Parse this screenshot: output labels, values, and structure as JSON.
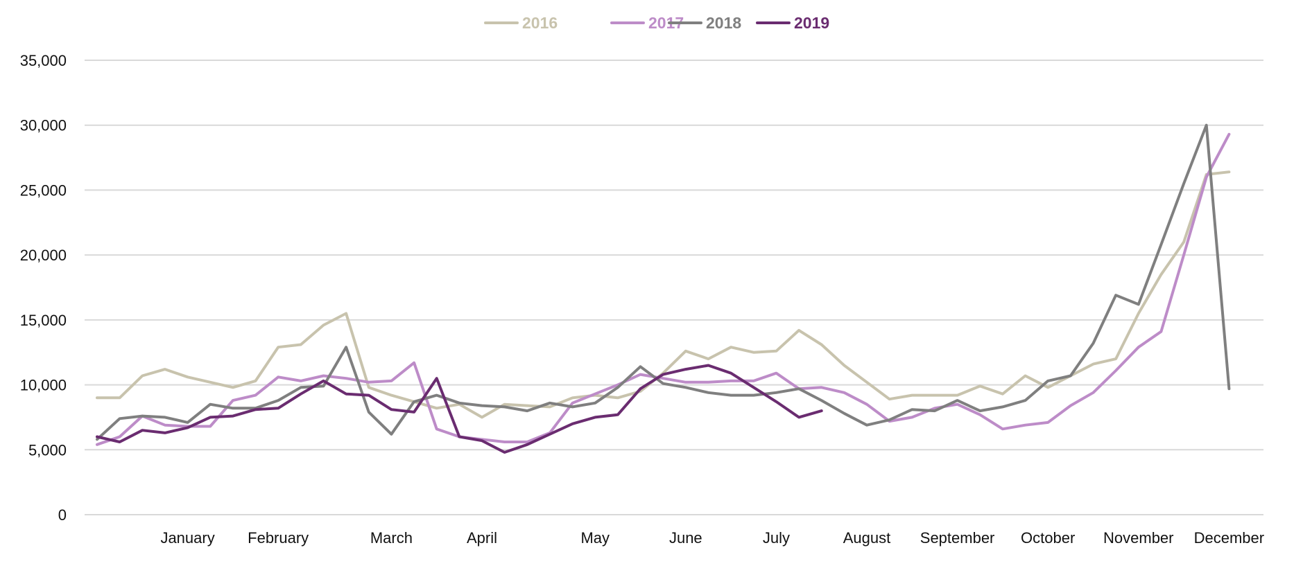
{
  "chart_data": {
    "type": "line",
    "title": "",
    "xlabel": "",
    "ylabel": "",
    "ylim": [
      0,
      35000
    ],
    "yticks": [
      0,
      5000,
      10000,
      15000,
      20000,
      25000,
      30000,
      35000
    ],
    "ytick_labels": [
      "0",
      "5,000",
      "10,000",
      "15,000",
      "20,000",
      "25,000",
      "30,000",
      "35,000"
    ],
    "grid": true,
    "legend_position": "top-center",
    "x_week_range": [
      1,
      53
    ],
    "month_labels": [
      {
        "label": "January",
        "week": 5
      },
      {
        "label": "February",
        "week": 9
      },
      {
        "label": "March",
        "week": 14
      },
      {
        "label": "April",
        "week": 18
      },
      {
        "label": "May",
        "week": 23
      },
      {
        "label": "June",
        "week": 27
      },
      {
        "label": "July",
        "week": 31
      },
      {
        "label": "August",
        "week": 35
      },
      {
        "label": "September",
        "week": 39
      },
      {
        "label": "October",
        "week": 43
      },
      {
        "label": "November",
        "week": 47
      },
      {
        "label": "December",
        "week": 51
      }
    ],
    "series": [
      {
        "name": "2016",
        "color": "#c8c3ad",
        "values": [
          9000,
          9000,
          10700,
          11200,
          10600,
          10200,
          9800,
          10300,
          12900,
          13100,
          14600,
          15500,
          9800,
          9200,
          8700,
          8200,
          8500,
          7500,
          8500,
          8400,
          8300,
          9000,
          9200,
          9000,
          9500,
          10900,
          12600,
          12000,
          12900,
          12500,
          12600,
          14200,
          13100,
          11500,
          10200,
          8900,
          9200,
          9200,
          9200,
          9900,
          9300,
          10700,
          9800,
          10700,
          11600,
          12000,
          15500,
          18500,
          21000,
          26200,
          26400
        ]
      },
      {
        "name": "2017",
        "color": "#bd8cc8",
        "values": [
          5400,
          6000,
          7600,
          6900,
          6800,
          6800,
          8800,
          9200,
          10600,
          10300,
          10700,
          10500,
          10200,
          10300,
          11700,
          6600,
          6000,
          5800,
          5600,
          5600,
          6300,
          8600,
          9300,
          10000,
          10800,
          10500,
          10200,
          10200,
          10300,
          10300,
          10900,
          9700,
          9800,
          9400,
          8500,
          7200,
          7500,
          8200,
          8500,
          7700,
          6600,
          6900,
          7100,
          8400,
          9400,
          11100,
          12900,
          14100,
          20000,
          26000,
          29300
        ]
      },
      {
        "name": "2018",
        "color": "#7f7f7f",
        "values": [
          5800,
          7400,
          7600,
          7500,
          7100,
          8500,
          8200,
          8200,
          8800,
          9800,
          9900,
          12900,
          7900,
          6200,
          8700,
          9200,
          8600,
          8400,
          8300,
          8000,
          8600,
          8300,
          8600,
          9800,
          11400,
          10100,
          9800,
          9400,
          9200,
          9200,
          9400,
          9700,
          8800,
          7800,
          6900,
          7300,
          8100,
          8000,
          8800,
          8000,
          8300,
          8800,
          10300,
          10700,
          13200,
          16900,
          16200,
          20800,
          25500,
          30000,
          9700
        ]
      },
      {
        "name": "2019",
        "color": "#6a2c70",
        "values": [
          6000,
          5600,
          6500,
          6300,
          6700,
          7500,
          7600,
          8100,
          8200,
          9300,
          10300,
          9300,
          9200,
          8100,
          7900,
          10500,
          6000,
          5700,
          4800,
          5400,
          6200,
          7000,
          7500,
          7700,
          9700,
          10800,
          11200,
          11500,
          10900,
          9800,
          8700,
          7500,
          8000
        ]
      }
    ]
  }
}
